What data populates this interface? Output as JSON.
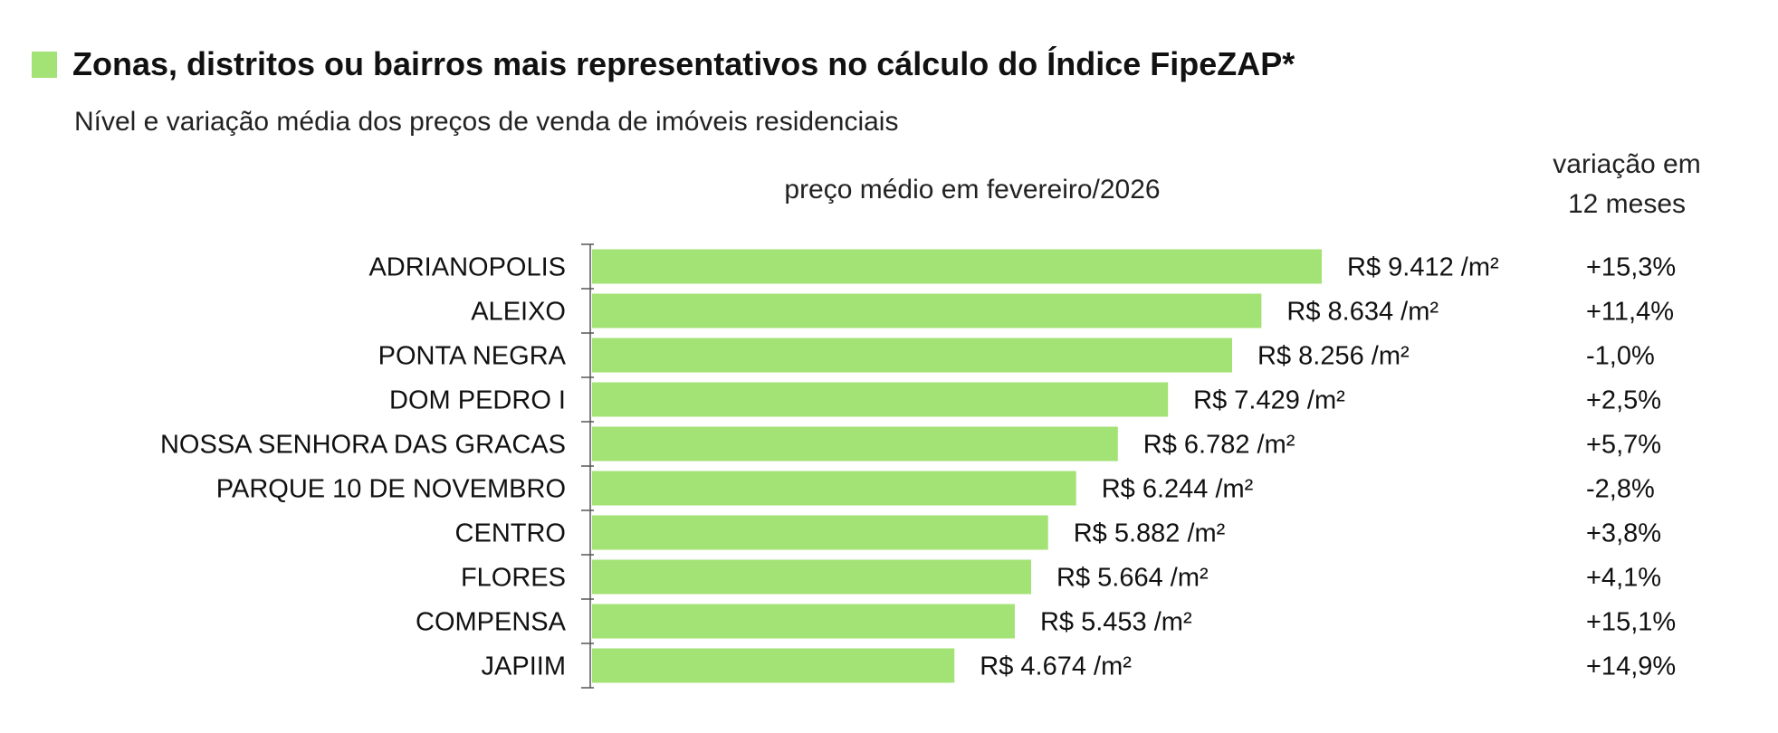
{
  "legend_color": "#a3e274",
  "chart_data": {
    "type": "bar",
    "orientation": "horizontal",
    "title": "Zonas, distritos ou bairros mais representativos no cálculo do Índice FipeZAP*",
    "subtitle": "Nível e variação média dos preços de venda de imóveis residenciais",
    "xlabel": "preço médio em fevereiro/2026",
    "variation_header": [
      "variação em",
      "12 meses"
    ],
    "unit_label": "/m²",
    "categories": [
      "ADRIANOPOLIS",
      "ALEIXO",
      "PONTA NEGRA",
      "DOM PEDRO I",
      "NOSSA SENHORA DAS GRACAS",
      "PARQUE 10 DE NOVEMBRO",
      "CENTRO",
      "FLORES",
      "COMPENSA",
      "JAPIIM"
    ],
    "values": [
      9412,
      8634,
      8256,
      7429,
      6782,
      6244,
      5882,
      5664,
      5453,
      4674
    ],
    "value_labels": [
      "R$ 9.412 /m²",
      "R$ 8.634 /m²",
      "R$ 8.256 /m²",
      "R$ 7.429 /m²",
      "R$ 6.782 /m²",
      "R$ 6.244 /m²",
      "R$ 5.882 /m²",
      "R$ 5.664 /m²",
      "R$ 5.453 /m²",
      "R$ 4.674 /m²"
    ],
    "variation_12m": [
      "+15,3%",
      "+11,4%",
      "-1,0%",
      "+2,5%",
      "+5,7%",
      "-2,8%",
      "+3,8%",
      "+4,1%",
      "+15,1%",
      "+14,9%"
    ],
    "xlim": [
      0,
      9412
    ],
    "bar_color": "#a3e274",
    "grid": false
  }
}
